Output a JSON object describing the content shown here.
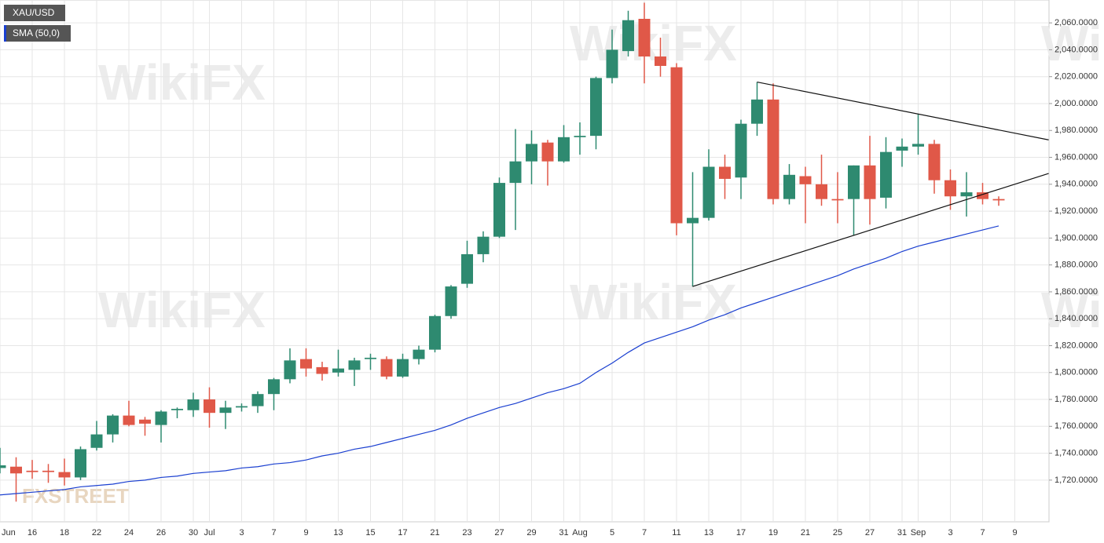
{
  "chart_data": {
    "type": "candlestick",
    "watermark": "WikiFX",
    "logo": "FXSTREET",
    "categories": [
      "Jun",
      null,
      "16",
      null,
      "18",
      null,
      "22",
      null,
      "24",
      null,
      "26",
      null,
      "30",
      "Jul",
      null,
      "3",
      null,
      "7",
      null,
      "9",
      null,
      "13",
      null,
      "15",
      null,
      "17",
      null,
      "21",
      null,
      "23",
      null,
      "27",
      null,
      "29",
      null,
      "31",
      "Aug",
      null,
      "5",
      null,
      "7",
      null,
      "11",
      null,
      "13",
      null,
      "17",
      null,
      "19",
      null,
      "21",
      null,
      "25",
      null,
      "27",
      null,
      "31",
      "Sep",
      null,
      "3",
      null,
      "7",
      null,
      "9"
    ],
    "series": [
      {
        "name": "XAU/USD",
        "up_color": "#2e8a70",
        "down_color": "#e05848",
        "open": [
          1729,
          1730,
          1727,
          1727,
          1726,
          1722,
          1744,
          1754,
          1768,
          1765,
          1761,
          1772,
          1772,
          1780,
          1770,
          1774,
          1775,
          1784,
          1795,
          1810,
          1804,
          1800,
          1802,
          1810,
          1810,
          1797,
          1810,
          1817,
          1842,
          1866,
          1888,
          1901,
          1941,
          1957,
          1971,
          1957,
          1975,
          1976,
          2019,
          2039,
          2063,
          2035,
          2027,
          1911,
          1915,
          1953,
          1945,
          1985,
          2003,
          1929,
          1946,
          1940,
          1929,
          1929,
          1954,
          1930,
          1965,
          1968,
          1970,
          1943,
          1931,
          1934,
          1929,
          null
        ],
        "high": [
          1744,
          1737,
          1735,
          1732,
          1736,
          1745,
          1764,
          1769,
          1779,
          1767,
          1772,
          1774,
          1785,
          1789,
          1779,
          1777,
          1786,
          1796,
          1818,
          1818,
          1808,
          1817,
          1811,
          1814,
          1812,
          1814,
          1820,
          1843,
          1865,
          1898,
          1905,
          1945,
          1981,
          1980,
          1973,
          1984,
          1986,
          2020,
          2055,
          2069,
          2075,
          2049,
          2030,
          1949,
          1966,
          1962,
          1988,
          2016,
          2015,
          1955,
          1953,
          1962,
          1949,
          1954,
          1976,
          1975,
          1974,
          1992,
          1973,
          1951,
          1949,
          1941,
          1931,
          null
        ],
        "low": [
          1725,
          1704,
          1721,
          1718,
          1716,
          1720,
          1742,
          1748,
          1760,
          1753,
          1748,
          1766,
          1767,
          1759,
          1758,
          1771,
          1770,
          1772,
          1792,
          1797,
          1794,
          1797,
          1790,
          1802,
          1795,
          1796,
          1806,
          1815,
          1840,
          1863,
          1882,
          1900,
          1906,
          1940,
          1939,
          1956,
          1962,
          1966,
          2015,
          2035,
          2015,
          2020,
          1902,
          1864,
          1913,
          1929,
          1929,
          1976,
          1925,
          1925,
          1911,
          1924,
          1911,
          1902,
          1910,
          1922,
          1953,
          1962,
          1933,
          1921,
          1916,
          1925,
          1924,
          null
        ],
        "close": [
          1731,
          1725,
          1726,
          1726,
          1722,
          1743,
          1754,
          1768,
          1761,
          1762,
          1771,
          1773,
          1780,
          1770,
          1774,
          1775,
          1784,
          1795,
          1809,
          1803,
          1799,
          1803,
          1809,
          1811,
          1797,
          1810,
          1817,
          1842,
          1864,
          1888,
          1901,
          1941,
          1957,
          1970,
          1957,
          1975,
          1976,
          2019,
          2040,
          2062,
          2035,
          2028,
          1911,
          1915,
          1953,
          1944,
          1985,
          2003,
          1929,
          1947,
          1940,
          1929,
          1928,
          1954,
          1929,
          1964,
          1968,
          1970,
          1943,
          1931,
          1934,
          1929,
          1928,
          null
        ]
      },
      {
        "name": "SMA (50,0)",
        "color": "#1a3fd0",
        "values": [
          1709,
          1710,
          1711,
          1712,
          1713,
          1715,
          1716,
          1717,
          1719,
          1720,
          1722,
          1723,
          1725,
          1726,
          1727,
          1729,
          1730,
          1732,
          1733,
          1735,
          1738,
          1740,
          1743,
          1745,
          1748,
          1751,
          1754,
          1757,
          1761,
          1766,
          1770,
          1774,
          1777,
          1781,
          1785,
          1788,
          1792,
          1800,
          1807,
          1815,
          1822,
          1826,
          1830,
          1834,
          1839,
          1843,
          1848,
          1852,
          1856,
          1860,
          1864,
          1868,
          1872,
          1877,
          1881,
          1885,
          1890,
          1894,
          1897,
          1900,
          1903,
          1906,
          1909,
          null
        ]
      }
    ],
    "trendlines": [
      {
        "color": "#111111",
        "x": [
          47,
          65.1
        ],
        "y": [
          2016,
          1973
        ]
      },
      {
        "color": "#111111",
        "x": [
          43,
          65.1
        ],
        "y": [
          1864,
          1948
        ]
      }
    ],
    "ylim": [
      1689,
      2077
    ],
    "yticks": [
      {
        "value": 1720,
        "label": "1,720.0000"
      },
      {
        "value": 1740,
        "label": "1,740.0000"
      },
      {
        "value": 1760,
        "label": "1,760.0000"
      },
      {
        "value": 1780,
        "label": "1,780.0000"
      },
      {
        "value": 1800,
        "label": "1,800.0000"
      },
      {
        "value": 1820,
        "label": "1,820.0000"
      },
      {
        "value": 1840,
        "label": "1,840.0000"
      },
      {
        "value": 1860,
        "label": "1,860.0000"
      },
      {
        "value": 1880,
        "label": "1,880.0000"
      },
      {
        "value": 1900,
        "label": "1,900.0000"
      },
      {
        "value": 1920,
        "label": "1,920.0000"
      },
      {
        "value": 1940,
        "label": "1,940.0000"
      },
      {
        "value": 1960,
        "label": "1,960.0000"
      },
      {
        "value": 1980,
        "label": "1,980.0000"
      },
      {
        "value": 2000,
        "label": "2,000.0000"
      },
      {
        "value": 2020,
        "label": "2,020.0000"
      },
      {
        "value": 2040,
        "label": "2,040.0000"
      },
      {
        "value": 2060,
        "label": "2,060.0000"
      }
    ],
    "grid": true
  }
}
